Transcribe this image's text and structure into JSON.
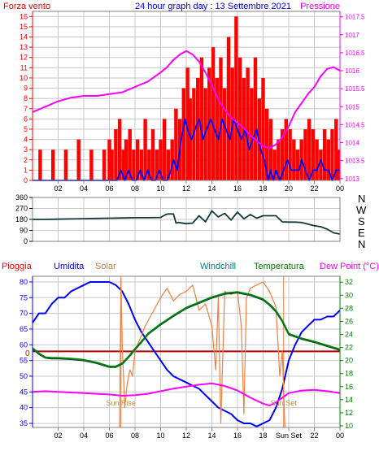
{
  "chart_data": [
    {
      "type": "line",
      "title": "24 hour graph day : 13 Settembre 2021",
      "y_left_label": "Forza vento",
      "y_right_label": "Pressione",
      "x_ticks": [
        "02",
        "04",
        "06",
        "08",
        "10",
        "12",
        "14",
        "16",
        "18",
        "20",
        "22",
        "00"
      ],
      "y_left_ticks": [
        0,
        1,
        2,
        3,
        4,
        5,
        6,
        7,
        8,
        9,
        10,
        11,
        12,
        13,
        14,
        15,
        16
      ],
      "y_right_ticks": [
        "1013",
        "1013.5",
        "1014",
        "1014.5",
        "1015",
        "1015.5",
        "1016",
        "1016.5",
        "1017",
        "1017.5"
      ],
      "ylim_left": [
        0,
        16.5
      ],
      "ylim_right": [
        1012.95,
        1017.65
      ],
      "xlim_hours": [
        0,
        24
      ],
      "series": [
        {
          "color": "#ff0000",
          "axis": "left",
          "kind": "bars",
          "x": [
            0.2,
            0.6,
            1.1,
            1.6,
            2.1,
            2.6,
            3.1,
            3.6,
            4.1,
            4.6,
            5.1,
            5.6,
            6.0,
            6.2,
            6.5,
            6.8,
            7.1,
            7.3,
            7.6,
            7.9,
            8.2,
            8.5,
            8.8,
            9.1,
            9.4,
            9.7,
            10.0,
            10.3,
            10.6,
            10.9,
            11.2,
            11.5,
            11.8,
            12.1,
            12.3,
            12.6,
            12.9,
            13.2,
            13.5,
            13.8,
            14.1,
            14.4,
            14.7,
            15.0,
            15.3,
            15.6,
            15.9,
            16.2,
            16.5,
            16.8,
            17.1,
            17.4,
            17.7,
            18.0,
            18.3,
            18.6,
            18.9,
            19.2,
            19.5,
            19.8,
            20.1,
            20.4,
            20.7,
            21.0,
            21.3,
            21.6,
            21.9,
            22.2,
            22.5,
            22.8,
            23.1,
            23.4,
            23.7,
            23.9
          ],
          "values": [
            0,
            3,
            0,
            3,
            0,
            3,
            0,
            4,
            0,
            3,
            0,
            3,
            4,
            3,
            5,
            6,
            3,
            4,
            5,
            3,
            4,
            3,
            6,
            3,
            5,
            3,
            4,
            6,
            3,
            4,
            7,
            6,
            9,
            11,
            8,
            9,
            10,
            12,
            9,
            11,
            13,
            10,
            12,
            9,
            14,
            11,
            16,
            12,
            10,
            11,
            9,
            12,
            8,
            10,
            7,
            6,
            3,
            4,
            5,
            6,
            5,
            4,
            3,
            4,
            5,
            6,
            5,
            4,
            3,
            5,
            4,
            5,
            6,
            3
          ]
        },
        {
          "color": "#0000ff",
          "axis": "left",
          "kind": "line",
          "x": [
            0,
            6.3,
            6.6,
            6.9,
            7.2,
            7.5,
            7.8,
            8.1,
            8.4,
            8.7,
            9.0,
            9.3,
            9.6,
            9.9,
            10.2,
            10.5,
            10.8,
            11.0,
            11.3,
            11.6,
            11.9,
            12.1,
            12.4,
            12.7,
            13.0,
            13.3,
            13.6,
            13.9,
            14.2,
            14.5,
            14.8,
            15.1,
            15.4,
            15.7,
            16.0,
            16.3,
            16.6,
            16.9,
            17.2,
            17.5,
            17.8,
            18.1,
            18.4,
            18.6,
            18.8,
            19.0,
            19.3,
            19.6,
            19.9,
            20.2,
            20.5,
            20.8,
            21.0,
            21.3,
            21.6,
            21.9,
            22.2,
            22.5,
            22.8,
            23.1,
            23.4,
            23.7,
            24.0
          ],
          "values": [
            0,
            0,
            0,
            1,
            0,
            1,
            0,
            0,
            1,
            0,
            1,
            0,
            0,
            1,
            0,
            0,
            1,
            2,
            1,
            4,
            6,
            5,
            4,
            5,
            6,
            4,
            5,
            6,
            5,
            4,
            6,
            5,
            4,
            6,
            5,
            4,
            5,
            3,
            4,
            5,
            3,
            2,
            0,
            1,
            0,
            1,
            0,
            1,
            2,
            1,
            1,
            1,
            2,
            1,
            0,
            1,
            1,
            2,
            1,
            1,
            0,
            1,
            1
          ]
        },
        {
          "color": "#ff00ff",
          "axis": "right",
          "kind": "line",
          "x": [
            0,
            1,
            2,
            3,
            4,
            5,
            6,
            7,
            8,
            9,
            10,
            10.5,
            11,
            11.5,
            12,
            12.5,
            13,
            13.5,
            14,
            14.5,
            15,
            15.5,
            16,
            16.5,
            17,
            17.5,
            18,
            18.5,
            19,
            19.5,
            20,
            20.5,
            21,
            21.5,
            22,
            22.5,
            23,
            23.5,
            24
          ],
          "values": [
            1014.85,
            1015.0,
            1015.15,
            1015.25,
            1015.3,
            1015.3,
            1015.35,
            1015.4,
            1015.55,
            1015.7,
            1015.95,
            1016.1,
            1016.3,
            1016.45,
            1016.55,
            1016.45,
            1016.25,
            1015.95,
            1015.6,
            1015.2,
            1014.9,
            1014.7,
            1014.55,
            1014.4,
            1014.2,
            1014.05,
            1013.9,
            1013.85,
            1013.95,
            1014.15,
            1014.45,
            1014.85,
            1015.1,
            1015.35,
            1015.55,
            1015.85,
            1016.05,
            1016.1,
            1016.0
          ]
        }
      ]
    },
    {
      "type": "line",
      "title": "",
      "direction_labels": [
        "N",
        "W",
        "S",
        "E",
        "N"
      ],
      "y_ticks": [
        0,
        90,
        180,
        270,
        360
      ],
      "ylim": [
        0,
        360
      ],
      "xlim_hours": [
        0,
        24
      ],
      "series": [
        {
          "color": "#123a3a",
          "x": [
            0,
            1,
            2,
            3,
            4,
            5,
            6,
            7,
            8,
            9,
            10,
            10.4,
            10.6,
            11.0,
            11.2,
            11.4,
            12,
            12.5,
            13,
            13.5,
            14,
            14.5,
            15,
            15.5,
            16,
            16.5,
            17,
            17.5,
            18,
            19,
            19.5,
            20,
            20.5,
            21,
            22,
            22.5,
            23,
            23.5,
            24
          ],
          "values": [
            180,
            180,
            182,
            184,
            186,
            188,
            190,
            192,
            194,
            194,
            196,
            220,
            225,
            225,
            150,
            155,
            145,
            150,
            210,
            160,
            250,
            200,
            230,
            175,
            240,
            185,
            220,
            190,
            210,
            210,
            160,
            158,
            158,
            155,
            128,
            120,
            100,
            70,
            60
          ]
        }
      ]
    },
    {
      "type": "line",
      "labels": {
        "pioggia": "Pioggia",
        "umidita": "Umidita",
        "solar": "Solar",
        "windchill": "Windchill",
        "temperatura": "Temperatura",
        "dew_point": "Dew Point (°C)"
      },
      "x_ticks": [
        "02",
        "04",
        "06",
        "08",
        "10",
        "12",
        "14",
        "16",
        "18",
        "Sun Set",
        "22",
        "00"
      ],
      "y_left_ticks": [
        35,
        40,
        45,
        50,
        55,
        60,
        65,
        70,
        75,
        80
      ],
      "y_right_ticks": [
        10,
        12,
        14,
        16,
        18,
        20,
        22,
        24,
        26,
        28,
        30,
        32
      ],
      "ylim_left": [
        33.7,
        81.8
      ],
      "ylim_right": [
        9.75,
        32.9
      ],
      "xlim_hours": [
        0,
        24
      ],
      "rain_label": "0",
      "sunrise_label": "Sun Rise",
      "sunset_label": "Sun Set",
      "sunrise_hour": 6.9,
      "sunset_hour": 19.6,
      "series": [
        {
          "name": "Umidita",
          "color": "#0000ff",
          "axis": "left",
          "x": [
            0,
            0.5,
            1,
            1.5,
            2,
            2.5,
            3,
            3.5,
            4,
            4.5,
            5,
            5.5,
            6,
            6.5,
            7,
            7.5,
            8,
            8.5,
            9,
            9.5,
            10,
            10.5,
            11,
            11.5,
            12,
            12.5,
            13,
            13.5,
            14,
            14.5,
            15,
            15.5,
            16,
            16.5,
            17,
            17.5,
            18,
            18.5,
            19,
            19.5,
            20,
            20.5,
            21,
            21.5,
            22,
            22.5,
            23,
            23.5,
            24
          ],
          "values": [
            67,
            70,
            70,
            73,
            75,
            75,
            77,
            78,
            79,
            80,
            80,
            80,
            80,
            79,
            77,
            73,
            68,
            64,
            61,
            58,
            55,
            52,
            50,
            49,
            48,
            47,
            46,
            44,
            42,
            40,
            39,
            38,
            36,
            35,
            35,
            34,
            35,
            36,
            40,
            46,
            55,
            60,
            64,
            66,
            68,
            68,
            69,
            69,
            71
          ]
        },
        {
          "name": "Solar",
          "color": "#f08040",
          "axis": "left",
          "x": [
            6.8,
            6.9,
            7.0,
            7.2,
            7.4,
            7.6,
            7.8,
            8.0,
            8.4,
            8.8,
            9.2,
            9.6,
            10,
            10.5,
            11,
            11.5,
            12,
            12.5,
            13,
            13.5,
            14,
            14.3,
            14.5,
            14.7,
            15,
            15.5,
            16,
            16.3,
            16.5,
            16.7,
            17,
            17.5,
            18,
            18.5,
            19,
            19.3,
            19.5,
            19.7
          ],
          "values": [
            33.7,
            81,
            60,
            40,
            48,
            52,
            50,
            58,
            62,
            66,
            69,
            72,
            75,
            78,
            74,
            76,
            77,
            79,
            71,
            73,
            66,
            52,
            75,
            35,
            77,
            76,
            77,
            66,
            38,
            75,
            78,
            79,
            80,
            77,
            72,
            50,
            58,
            33.7
          ]
        },
        {
          "name": "Windchill",
          "color": "#004040",
          "axis": "right",
          "x": [
            0,
            0.5,
            1,
            1.5,
            2,
            3,
            4,
            5,
            6,
            6.5,
            7,
            7.5,
            8,
            8.5,
            9,
            10,
            11,
            12,
            13,
            14,
            15,
            16,
            17,
            18,
            18.5,
            19,
            19.5,
            20,
            21,
            22,
            23,
            24
          ],
          "values": [
            21.8,
            21.0,
            20.4,
            20.3,
            20.3,
            20.2,
            20.0,
            19.6,
            19.0,
            19.0,
            19.5,
            20.5,
            21.7,
            22.8,
            24.0,
            25.5,
            26.8,
            28.0,
            28.8,
            29.6,
            30.2,
            30.4,
            30.0,
            29.3,
            28.5,
            27.5,
            26.0,
            24.0,
            23.3,
            22.8,
            22.2,
            21.6
          ]
        },
        {
          "name": "Temperatura",
          "color": "#008000",
          "axis": "right",
          "x": [
            0,
            0.5,
            1,
            1.5,
            2,
            3,
            4,
            5,
            6,
            6.5,
            7,
            7.5,
            8,
            8.5,
            9,
            10,
            11,
            12,
            13,
            14,
            15,
            16,
            17,
            18,
            18.5,
            19,
            19.5,
            20,
            21,
            22,
            23,
            24
          ],
          "values": [
            21.9,
            21.1,
            20.5,
            20.4,
            20.4,
            20.3,
            20.1,
            19.7,
            19.1,
            19.1,
            19.6,
            20.6,
            21.8,
            22.9,
            24.1,
            25.6,
            26.9,
            28.1,
            28.9,
            29.7,
            30.3,
            30.5,
            30.1,
            29.4,
            28.6,
            27.6,
            26.1,
            24.1,
            23.4,
            22.9,
            22.3,
            21.7
          ]
        },
        {
          "name": "Dew Point",
          "color": "#ff00ff",
          "axis": "right",
          "x": [
            0,
            1,
            2,
            3,
            4,
            5,
            6,
            7,
            8,
            9,
            10,
            11,
            12,
            13,
            14,
            15,
            16,
            17,
            18,
            18.5,
            19,
            19.5,
            20,
            21,
            22,
            23,
            24
          ],
          "values": [
            15.2,
            15.3,
            15.2,
            15.1,
            15.0,
            14.9,
            14.8,
            14.6,
            14.7,
            14.9,
            15.3,
            15.7,
            16.0,
            16.3,
            16.5,
            16.1,
            15.4,
            14.3,
            13.4,
            13.1,
            13.6,
            14.3,
            15.0,
            15.4,
            15.5,
            15.3,
            15.0
          ]
        }
      ]
    }
  ]
}
